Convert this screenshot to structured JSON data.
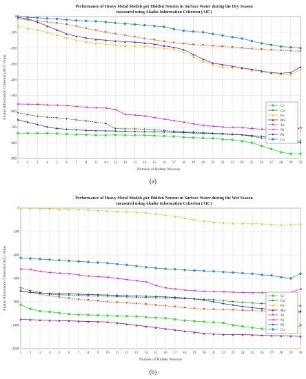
{
  "chart_data": [
    {
      "type": "line",
      "title": "Performance of Heavy Metal Models per Hidden Neuron in Surface Water during the Dry Season",
      "subtitle": "measured using Akaike Information Criterion (AIC)",
      "xlabel": "Number of Hidden Neurons",
      "ylabel": "Akaike Information Criterion (AIC) Value",
      "caption": "(a)",
      "xlim": [
        1,
        30
      ],
      "ylim": [
        -900,
        0
      ],
      "yticks": [
        0,
        -100,
        -200,
        -300,
        -400,
        -500,
        -600,
        -700,
        -800,
        -900
      ],
      "grid": true,
      "legend_position": "right",
      "x": [
        1,
        2,
        3,
        4,
        5,
        6,
        7,
        8,
        9,
        10,
        11,
        12,
        13,
        14,
        15,
        16,
        17,
        18,
        19,
        20,
        21,
        22,
        23,
        24,
        25,
        26,
        27,
        28,
        29,
        30
      ],
      "series": [
        {
          "name": "Cr",
          "color": "#33dd33",
          "marker": "circle",
          "values": [
            -740,
            -740,
            -740,
            -740,
            -742,
            -745,
            -748,
            -750,
            -752,
            -752,
            -750,
            -752,
            -752,
            -752,
            -755,
            -758,
            -760,
            -765,
            -768,
            -770,
            -772,
            -778,
            -782,
            -790,
            -800,
            -820,
            -840,
            -860,
            -870,
            -870
          ]
        },
        {
          "name": "Cd",
          "color": "#226622",
          "marker": "plus",
          "values": [
            -610,
            -622,
            -632,
            -638,
            -642,
            -648,
            -655,
            -662,
            -670,
            -678,
            -710,
            -712,
            -712,
            -714,
            -718,
            -722,
            -728,
            -730,
            -733,
            -736,
            -740,
            -742,
            -745,
            -750,
            -760,
            -770,
            -775,
            -780,
            -790,
            -790
          ]
        },
        {
          "name": "Fe",
          "color": "#cccc11",
          "marker": "triangle",
          "values": [
            -60,
            -75,
            -85,
            -100,
            -115,
            -135,
            -150,
            -160,
            -170,
            -175,
            -180,
            -185,
            -185,
            -188,
            -195,
            -200,
            -210,
            -225,
            -255,
            -285,
            -305,
            -320,
            -325,
            -330,
            -340,
            -350,
            -360,
            -365,
            -370,
            -335
          ]
        },
        {
          "name": "Mn",
          "color": "#882288",
          "marker": "triangle",
          "values": [
            -5,
            -15,
            -35,
            -60,
            -85,
            -110,
            -125,
            -135,
            -145,
            -150,
            -155,
            -160,
            -162,
            -168,
            -175,
            -185,
            -195,
            -210,
            -240,
            -270,
            -295,
            -305,
            -315,
            -325,
            -335,
            -345,
            -355,
            -360,
            -355,
            -320
          ]
        },
        {
          "name": "Zn",
          "color": "#dd5522",
          "marker": "triangle-down",
          "values": [
            -15,
            -22,
            -28,
            -35,
            -42,
            -50,
            -62,
            -75,
            -88,
            -100,
            -110,
            -120,
            -128,
            -140,
            -148,
            -158,
            -166,
            -172,
            -178,
            -182,
            -186,
            -190,
            -195,
            -200,
            -205,
            -208,
            -212,
            -215,
            -218,
            -220
          ]
        },
        {
          "name": "Ni",
          "color": "#dd22dd",
          "marker": "triangle-left",
          "values": [
            -555,
            -556,
            -557,
            -560,
            -562,
            -565,
            -570,
            -575,
            -578,
            -580,
            -590,
            -620,
            -625,
            -630,
            -640,
            -650,
            -660,
            -670,
            -680,
            -690,
            -695,
            -700,
            -702,
            -705,
            -710,
            -715,
            -718,
            -720,
            -730,
            -705
          ]
        },
        {
          "name": "Pb",
          "color": "#224488",
          "marker": "hexagram",
          "values": [
            -655,
            -670,
            -685,
            -700,
            -710,
            -715,
            -718,
            -722,
            -724,
            -725,
            -726,
            -728,
            -730,
            -730,
            -731,
            -732,
            -734,
            -736,
            -738,
            -740,
            -742,
            -745,
            -748,
            -750,
            -755,
            -760,
            -770,
            -780,
            -790,
            -800
          ]
        },
        {
          "name": "Cu",
          "color": "#3388cc",
          "marker": "circle",
          "values": [
            0,
            -5,
            -8,
            -12,
            -15,
            -20,
            -25,
            -28,
            -30,
            -35,
            -40,
            -45,
            -50,
            -55,
            -60,
            -65,
            -80,
            -90,
            -95,
            -100,
            -110,
            -120,
            -130,
            -140,
            -155,
            -170,
            -180,
            -190,
            -195,
            -200
          ]
        }
      ]
    },
    {
      "type": "line",
      "title": "Performance of Heavy Metal Models per Hidden Neuron in Surface Water during the Wet Season",
      "subtitle": "measured using Akaike Information Criterion (AIC)",
      "xlabel": "Number of Hidden Neurons",
      "ylabel": "Akaike Information Criterion (AIC) Value",
      "caption": "(b)",
      "xlim": [
        1,
        30
      ],
      "ylim": [
        -1200,
        0
      ],
      "yticks": [
        0,
        -200,
        -400,
        -600,
        -800,
        -1000,
        -1200
      ],
      "grid": true,
      "legend_position": "right",
      "x": [
        1,
        2,
        3,
        4,
        5,
        6,
        7,
        8,
        9,
        10,
        11,
        12,
        13,
        14,
        15,
        16,
        17,
        18,
        19,
        20,
        21,
        22,
        23,
        24,
        25,
        26,
        27,
        28,
        29,
        30
      ],
      "series": [
        {
          "name": "Cr",
          "color": "#33dd33",
          "marker": "circle",
          "values": [
            -825,
            -860,
            -880,
            -885,
            -895,
            -905,
            -910,
            -912,
            -915,
            -918,
            -920,
            -922,
            -925,
            -930,
            -935,
            -940,
            -950,
            -960,
            -965,
            -970,
            -975,
            -980,
            -1000,
            -1010,
            -1020,
            -1030,
            -1040,
            -1050,
            -1060,
            -1000
          ]
        },
        {
          "name": "Cd",
          "color": "#226622",
          "marker": "plus",
          "values": [
            -680,
            -705,
            -720,
            -735,
            -740,
            -742,
            -745,
            -748,
            -750,
            -752,
            -755,
            -758,
            -760,
            -762,
            -765,
            -768,
            -770,
            -772,
            -775,
            -778,
            -782,
            -790,
            -798,
            -805,
            -810,
            -815,
            -820,
            -825,
            -830,
            -835
          ]
        },
        {
          "name": "Fe",
          "color": "#cccc11",
          "marker": "triangle",
          "values": [
            0,
            0,
            -2,
            -5,
            -8,
            -10,
            -12,
            -15,
            -20,
            -25,
            -28,
            -30,
            -35,
            -40,
            -50,
            -60,
            -70,
            -85,
            -100,
            -110,
            -120,
            -125,
            -130,
            -130,
            -132,
            -135,
            -140,
            -145,
            -140,
            -135
          ]
        },
        {
          "name": "Mn",
          "color": "#882288",
          "marker": "triangle",
          "values": [
            -950,
            -952,
            -955,
            -958,
            -960,
            -962,
            -965,
            -968,
            -970,
            -972,
            -980,
            -990,
            -1000,
            -1010,
            -1020,
            -1030,
            -1040,
            -1050,
            -1060,
            -1070,
            -1075,
            -1078,
            -1080,
            -1080,
            -1082,
            -1085,
            -1088,
            -1090,
            -1092,
            -1095
          ]
        },
        {
          "name": "Zn",
          "color": "#dd5522",
          "marker": "triangle-down",
          "values": [
            -705,
            -720,
            -735,
            -748,
            -760,
            -770,
            -780,
            -785,
            -792,
            -800,
            -805,
            -810,
            -815,
            -820,
            -828,
            -835,
            -842,
            -850,
            -858,
            -862,
            -865,
            -868,
            -870,
            -872,
            -875,
            -878,
            -880,
            -885,
            -888,
            -890
          ]
        },
        {
          "name": "Ni",
          "color": "#dd22dd",
          "marker": "triangle-left",
          "values": [
            -520,
            -525,
            -540,
            -550,
            -555,
            -560,
            -570,
            -580,
            -585,
            -590,
            -600,
            -610,
            -620,
            -630,
            -660,
            -680,
            -690,
            -700,
            -705,
            -710,
            -712,
            -715,
            -718,
            -720,
            -722,
            -722,
            -725,
            -728,
            -720,
            -690
          ]
        },
        {
          "name": "Pb",
          "color": "#224488",
          "marker": "hexagram",
          "values": [
            -710,
            -720,
            -725,
            -728,
            -730,
            -732,
            -735,
            -738,
            -740,
            -742,
            -745,
            -748,
            -750,
            -752,
            -755,
            -758,
            -762,
            -768,
            -775,
            -785,
            -800,
            -815,
            -828,
            -840,
            -850,
            -858,
            -865,
            -870,
            -875,
            -880
          ]
        },
        {
          "name": "Cu",
          "color": "#3388cc",
          "marker": "circle",
          "values": [
            -425,
            -430,
            -435,
            -440,
            -445,
            -450,
            -455,
            -460,
            -465,
            -470,
            -478,
            -485,
            -495,
            -505,
            -512,
            -518,
            -522,
            -528,
            -532,
            -536,
            -540,
            -545,
            -550,
            -555,
            -560,
            -570,
            -575,
            -590,
            -600,
            -560
          ]
        }
      ]
    }
  ]
}
